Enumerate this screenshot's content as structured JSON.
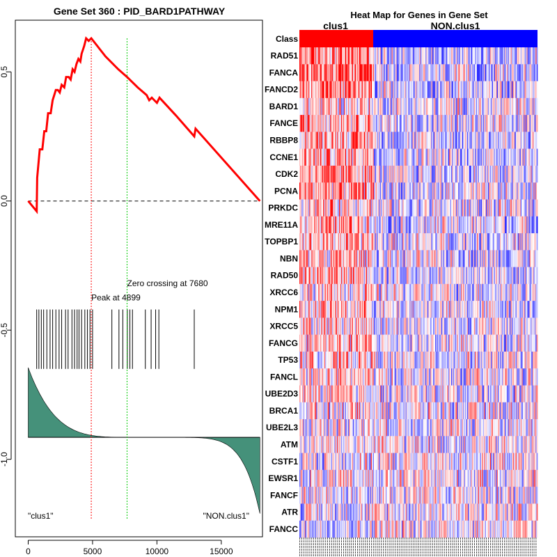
{
  "colors": {
    "es_curve": "#ff0000",
    "peak_line": "#ff0000",
    "zero_line": "#00cc00",
    "metric_fill": "#45917a",
    "hit_line": "#000000",
    "class_a": "#ff0000",
    "class_b": "#0000ff"
  },
  "chart_data": [
    {
      "type": "line",
      "title": "Gene Set  360 : PID_BARD1PATHWAY",
      "xlabel": "",
      "ylabel": "",
      "xlim": [
        -1000,
        18200
      ],
      "ylim": [
        -1.3,
        0.7
      ],
      "x_ticks": [
        0,
        5000,
        10000,
        15000
      ],
      "y_ticks": [
        0.5,
        0.0,
        -0.5,
        -1.0
      ],
      "x_tick_labels": [
        "0",
        "5000",
        "10000",
        "15000"
      ],
      "y_tick_labels": [
        "0.5",
        "0.0",
        "-0.5",
        "-1.0"
      ],
      "peak_label": "Peak at 4899",
      "peak_x": 4899,
      "zero_crossing_label": "Zero crossing at 7680",
      "zero_crossing_x": 7680,
      "left_class_label": "\"clus1\"",
      "right_class_label": "\"NON.clus1\"",
      "hit_positions": [
        660,
        830,
        1020,
        1200,
        1450,
        1700,
        1900,
        2150,
        2400,
        2600,
        2900,
        3100,
        3400,
        3600,
        3800,
        3950,
        4150,
        4400,
        4600,
        4800,
        5000,
        6500,
        7050,
        7350,
        7700,
        7900,
        8100,
        9100,
        9550,
        9900,
        10150,
        12900
      ],
      "es_points": [
        [
          0,
          0.0
        ],
        [
          660,
          -0.04
        ],
        [
          700,
          0.09
        ],
        [
          900,
          0.2
        ],
        [
          1100,
          0.2
        ],
        [
          1250,
          0.27
        ],
        [
          1400,
          0.27
        ],
        [
          1550,
          0.34
        ],
        [
          1750,
          0.34
        ],
        [
          1900,
          0.39
        ],
        [
          2150,
          0.43
        ],
        [
          2300,
          0.43
        ],
        [
          2450,
          0.42
        ],
        [
          2600,
          0.45
        ],
        [
          2800,
          0.44
        ],
        [
          2950,
          0.48
        ],
        [
          3150,
          0.48
        ],
        [
          3300,
          0.47
        ],
        [
          3450,
          0.51
        ],
        [
          3600,
          0.5
        ],
        [
          3750,
          0.53
        ],
        [
          3900,
          0.55
        ],
        [
          4050,
          0.54
        ],
        [
          4150,
          0.57
        ],
        [
          4350,
          0.6
        ],
        [
          4500,
          0.63
        ],
        [
          4700,
          0.62
        ],
        [
          4899,
          0.63
        ],
        [
          6000,
          0.56
        ],
        [
          7000,
          0.51
        ],
        [
          7680,
          0.48
        ],
        [
          8500,
          0.44
        ],
        [
          9200,
          0.41
        ],
        [
          9400,
          0.39
        ],
        [
          9600,
          0.4
        ],
        [
          9800,
          0.39
        ],
        [
          10000,
          0.38
        ],
        [
          10200,
          0.4
        ],
        [
          11500,
          0.33
        ],
        [
          12900,
          0.25
        ],
        [
          13000,
          0.28
        ],
        [
          18000,
          0.0
        ]
      ],
      "metric_baseline": -0.915,
      "metric_start": -0.645,
      "metric_end": -1.21
    },
    {
      "type": "heatmap",
      "title": "Heat Map for Genes in Gene Set",
      "class_row_label": "Class",
      "class_labels": [
        "clus1",
        "NON.clus1"
      ],
      "class_split_fraction": 0.31,
      "genes": [
        "RAD51",
        "FANCA",
        "FANCD2",
        "BARD1",
        "FANCE",
        "RBBP8",
        "CCNE1",
        "CDK2",
        "PCNA",
        "PRKDC",
        "MRE11A",
        "TOPBP1",
        "NBN",
        "RAD50",
        "XRCC6",
        "NPM1",
        "XRCC5",
        "FANCG",
        "TP53",
        "FANCL",
        "UBE2D3",
        "BRCA1",
        "UBE2L3",
        "ATM",
        "CSTF1",
        "EWSR1",
        "FANCF",
        "ATR",
        "FANCC"
      ],
      "row_bias": [
        0.55,
        0.62,
        0.55,
        0.22,
        0.5,
        0.45,
        0.38,
        0.45,
        0.45,
        0.3,
        0.4,
        0.28,
        0.3,
        0.38,
        0.15,
        0.28,
        0.22,
        0.25,
        0.2,
        0.18,
        0.15,
        0.12,
        0.05,
        0.05,
        -0.02,
        -0.02,
        -0.05,
        -0.05,
        -0.1
      ],
      "n_columns": 240
    }
  ]
}
